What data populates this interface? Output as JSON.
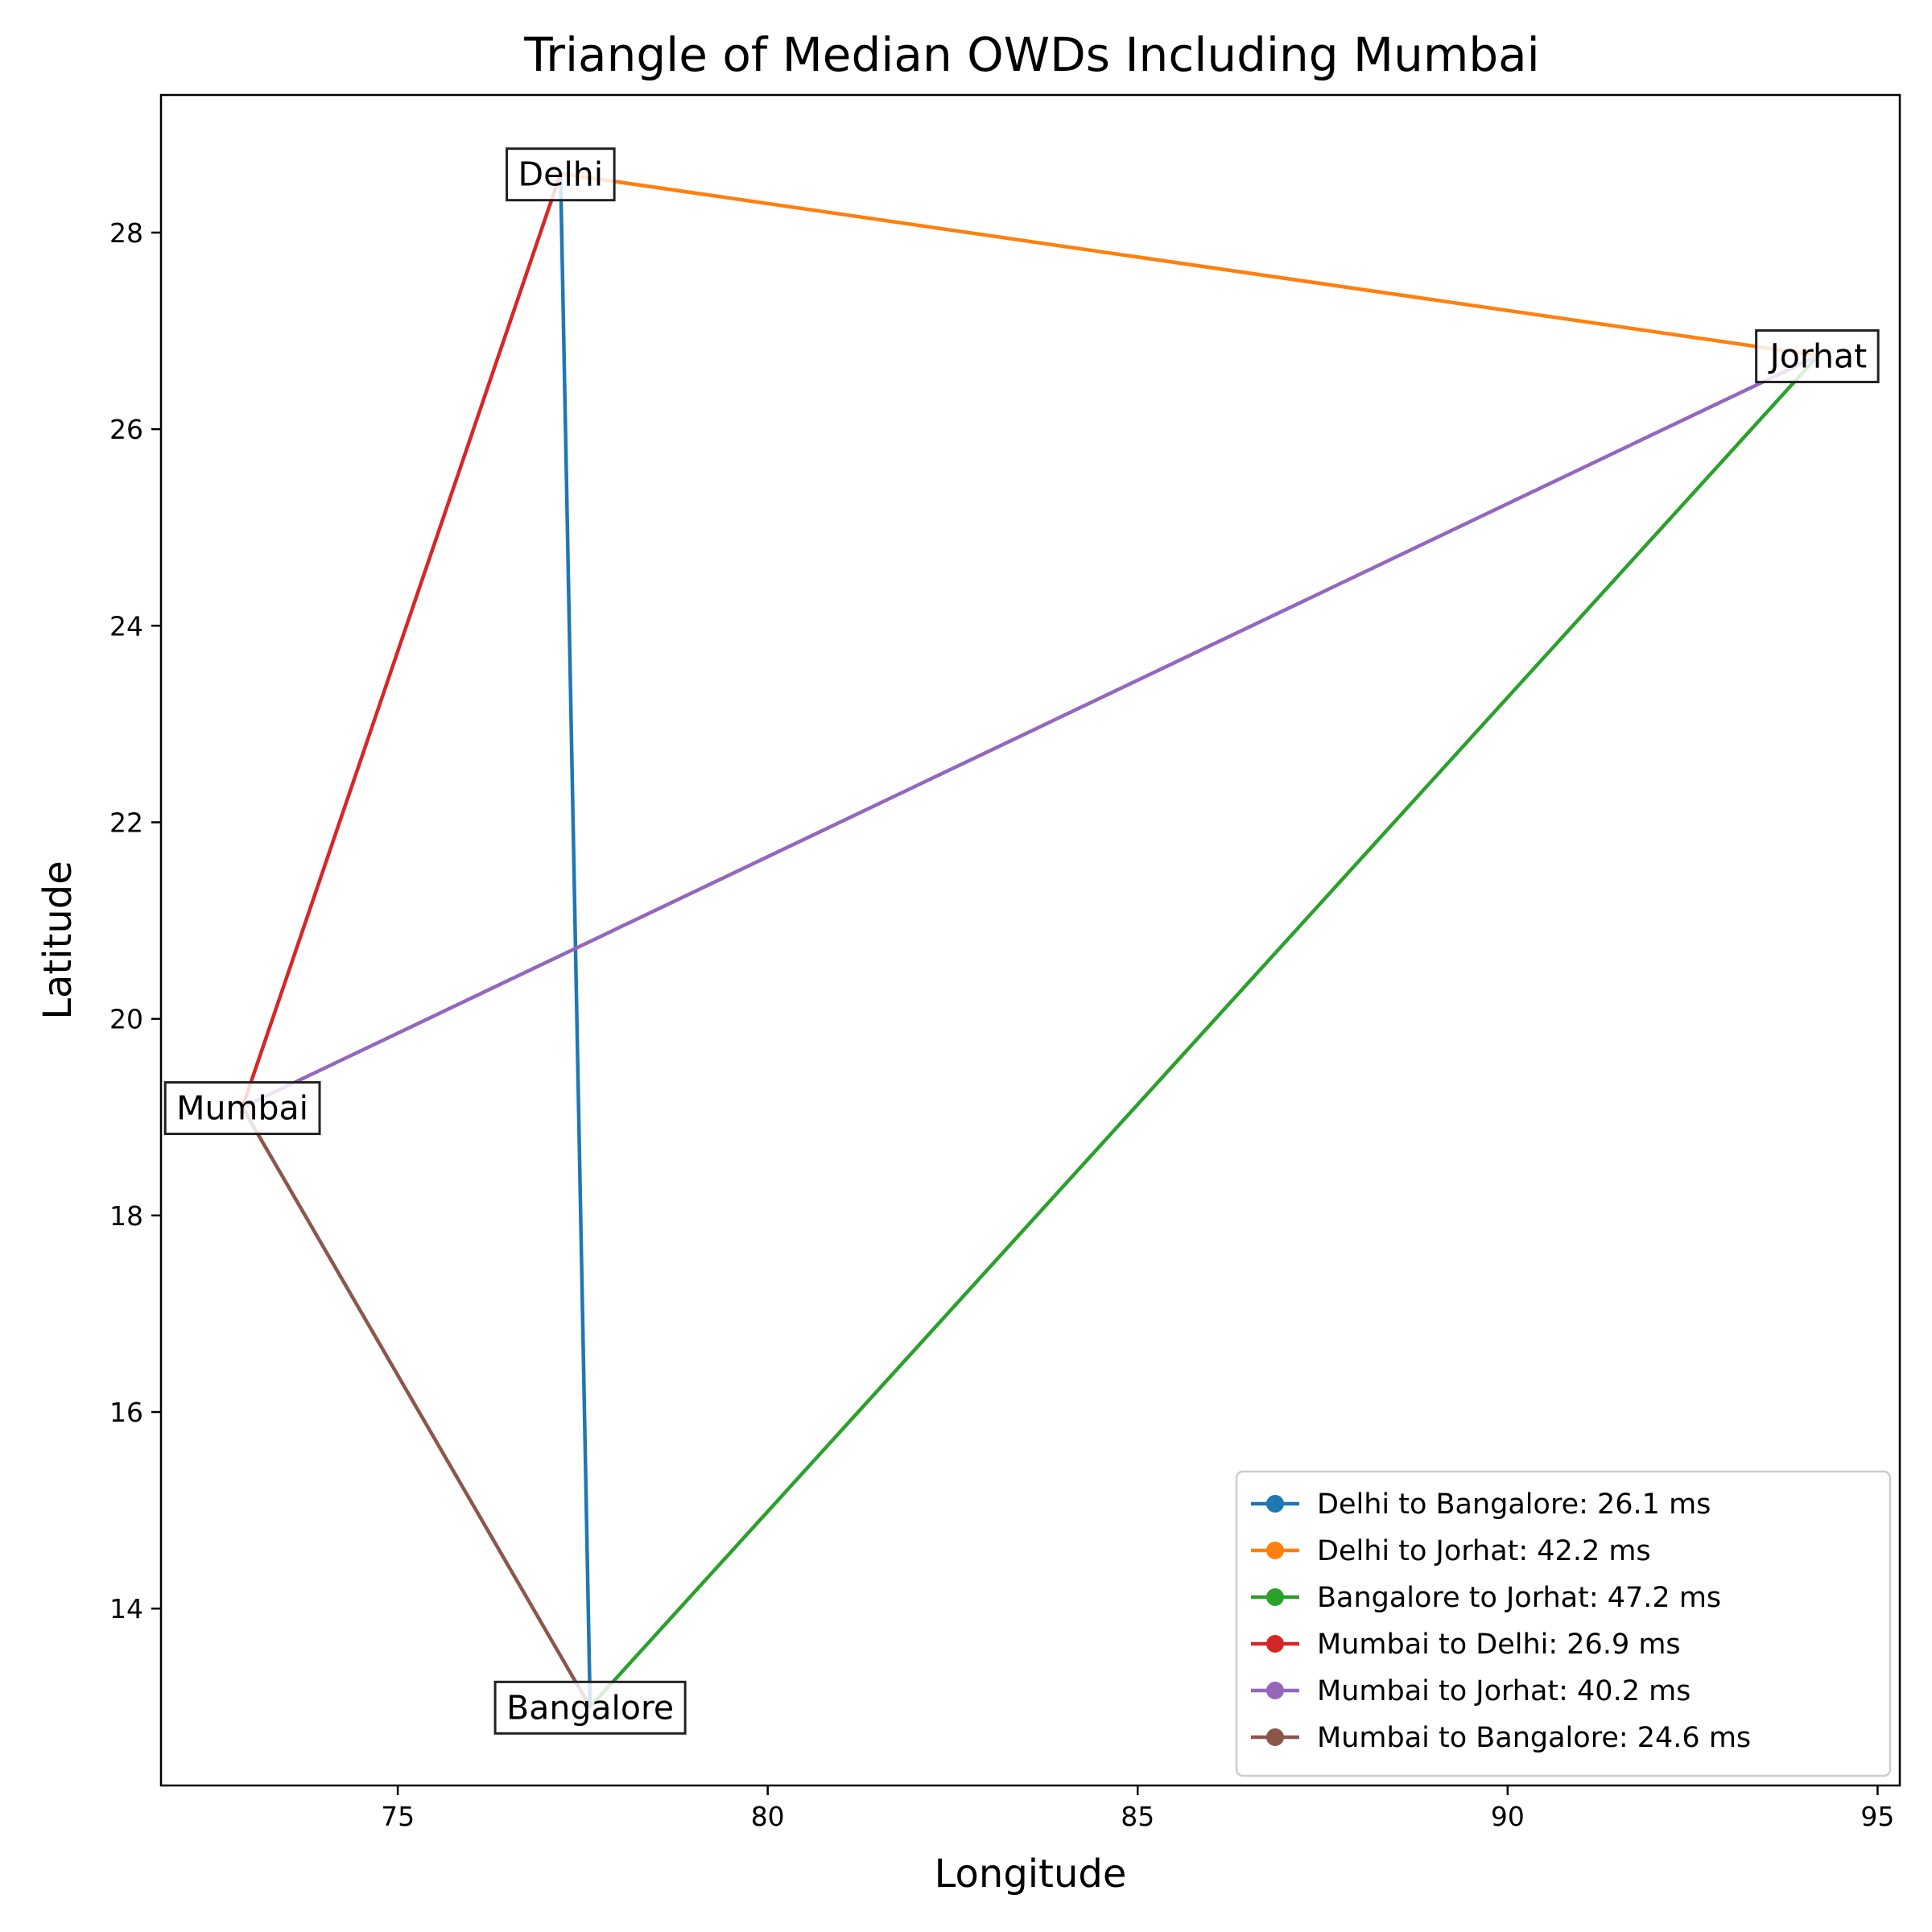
{
  "chart_data": {
    "type": "line",
    "title": "Triangle of Median OWDs Including Mumbai",
    "xlabel": "Longitude",
    "ylabel": "Latitude",
    "xlim": [
      71.8,
      95.3
    ],
    "ylim": [
      12.2,
      29.4
    ],
    "xticks": [
      75,
      80,
      85,
      90,
      95
    ],
    "yticks": [
      14,
      16,
      18,
      20,
      22,
      24,
      26,
      28
    ],
    "grid": false,
    "legend_position": "lower-right",
    "cities": [
      {
        "name": "Delhi",
        "lon": 77.2,
        "lat": 28.6
      },
      {
        "name": "Jorhat",
        "lon": 94.2,
        "lat": 26.75
      },
      {
        "name": "Mumbai",
        "lon": 72.9,
        "lat": 19.1
      },
      {
        "name": "Bangalore",
        "lon": 77.6,
        "lat": 13.0
      }
    ],
    "series": [
      {
        "name": "Delhi to Bangalore: 26.1 ms",
        "color": "#1f77b4",
        "x": [
          77.2,
          77.6
        ],
        "y": [
          28.6,
          13.0
        ]
      },
      {
        "name": "Delhi to Jorhat: 42.2 ms",
        "color": "#ff7f0e",
        "x": [
          77.2,
          94.2
        ],
        "y": [
          28.6,
          26.75
        ]
      },
      {
        "name": "Bangalore to Jorhat: 47.2 ms",
        "color": "#2ca02c",
        "x": [
          77.6,
          94.2
        ],
        "y": [
          13.0,
          26.75
        ]
      },
      {
        "name": "Mumbai to Delhi: 26.9 ms",
        "color": "#d62728",
        "x": [
          72.9,
          77.2
        ],
        "y": [
          19.1,
          28.6
        ]
      },
      {
        "name": "Mumbai to Jorhat: 40.2 ms",
        "color": "#9467bd",
        "x": [
          72.9,
          94.2
        ],
        "y": [
          19.1,
          26.75
        ]
      },
      {
        "name": "Mumbai to Bangalore: 24.6 ms",
        "color": "#8c564b",
        "x": [
          72.9,
          77.6
        ],
        "y": [
          19.1,
          13.0
        ]
      }
    ]
  }
}
